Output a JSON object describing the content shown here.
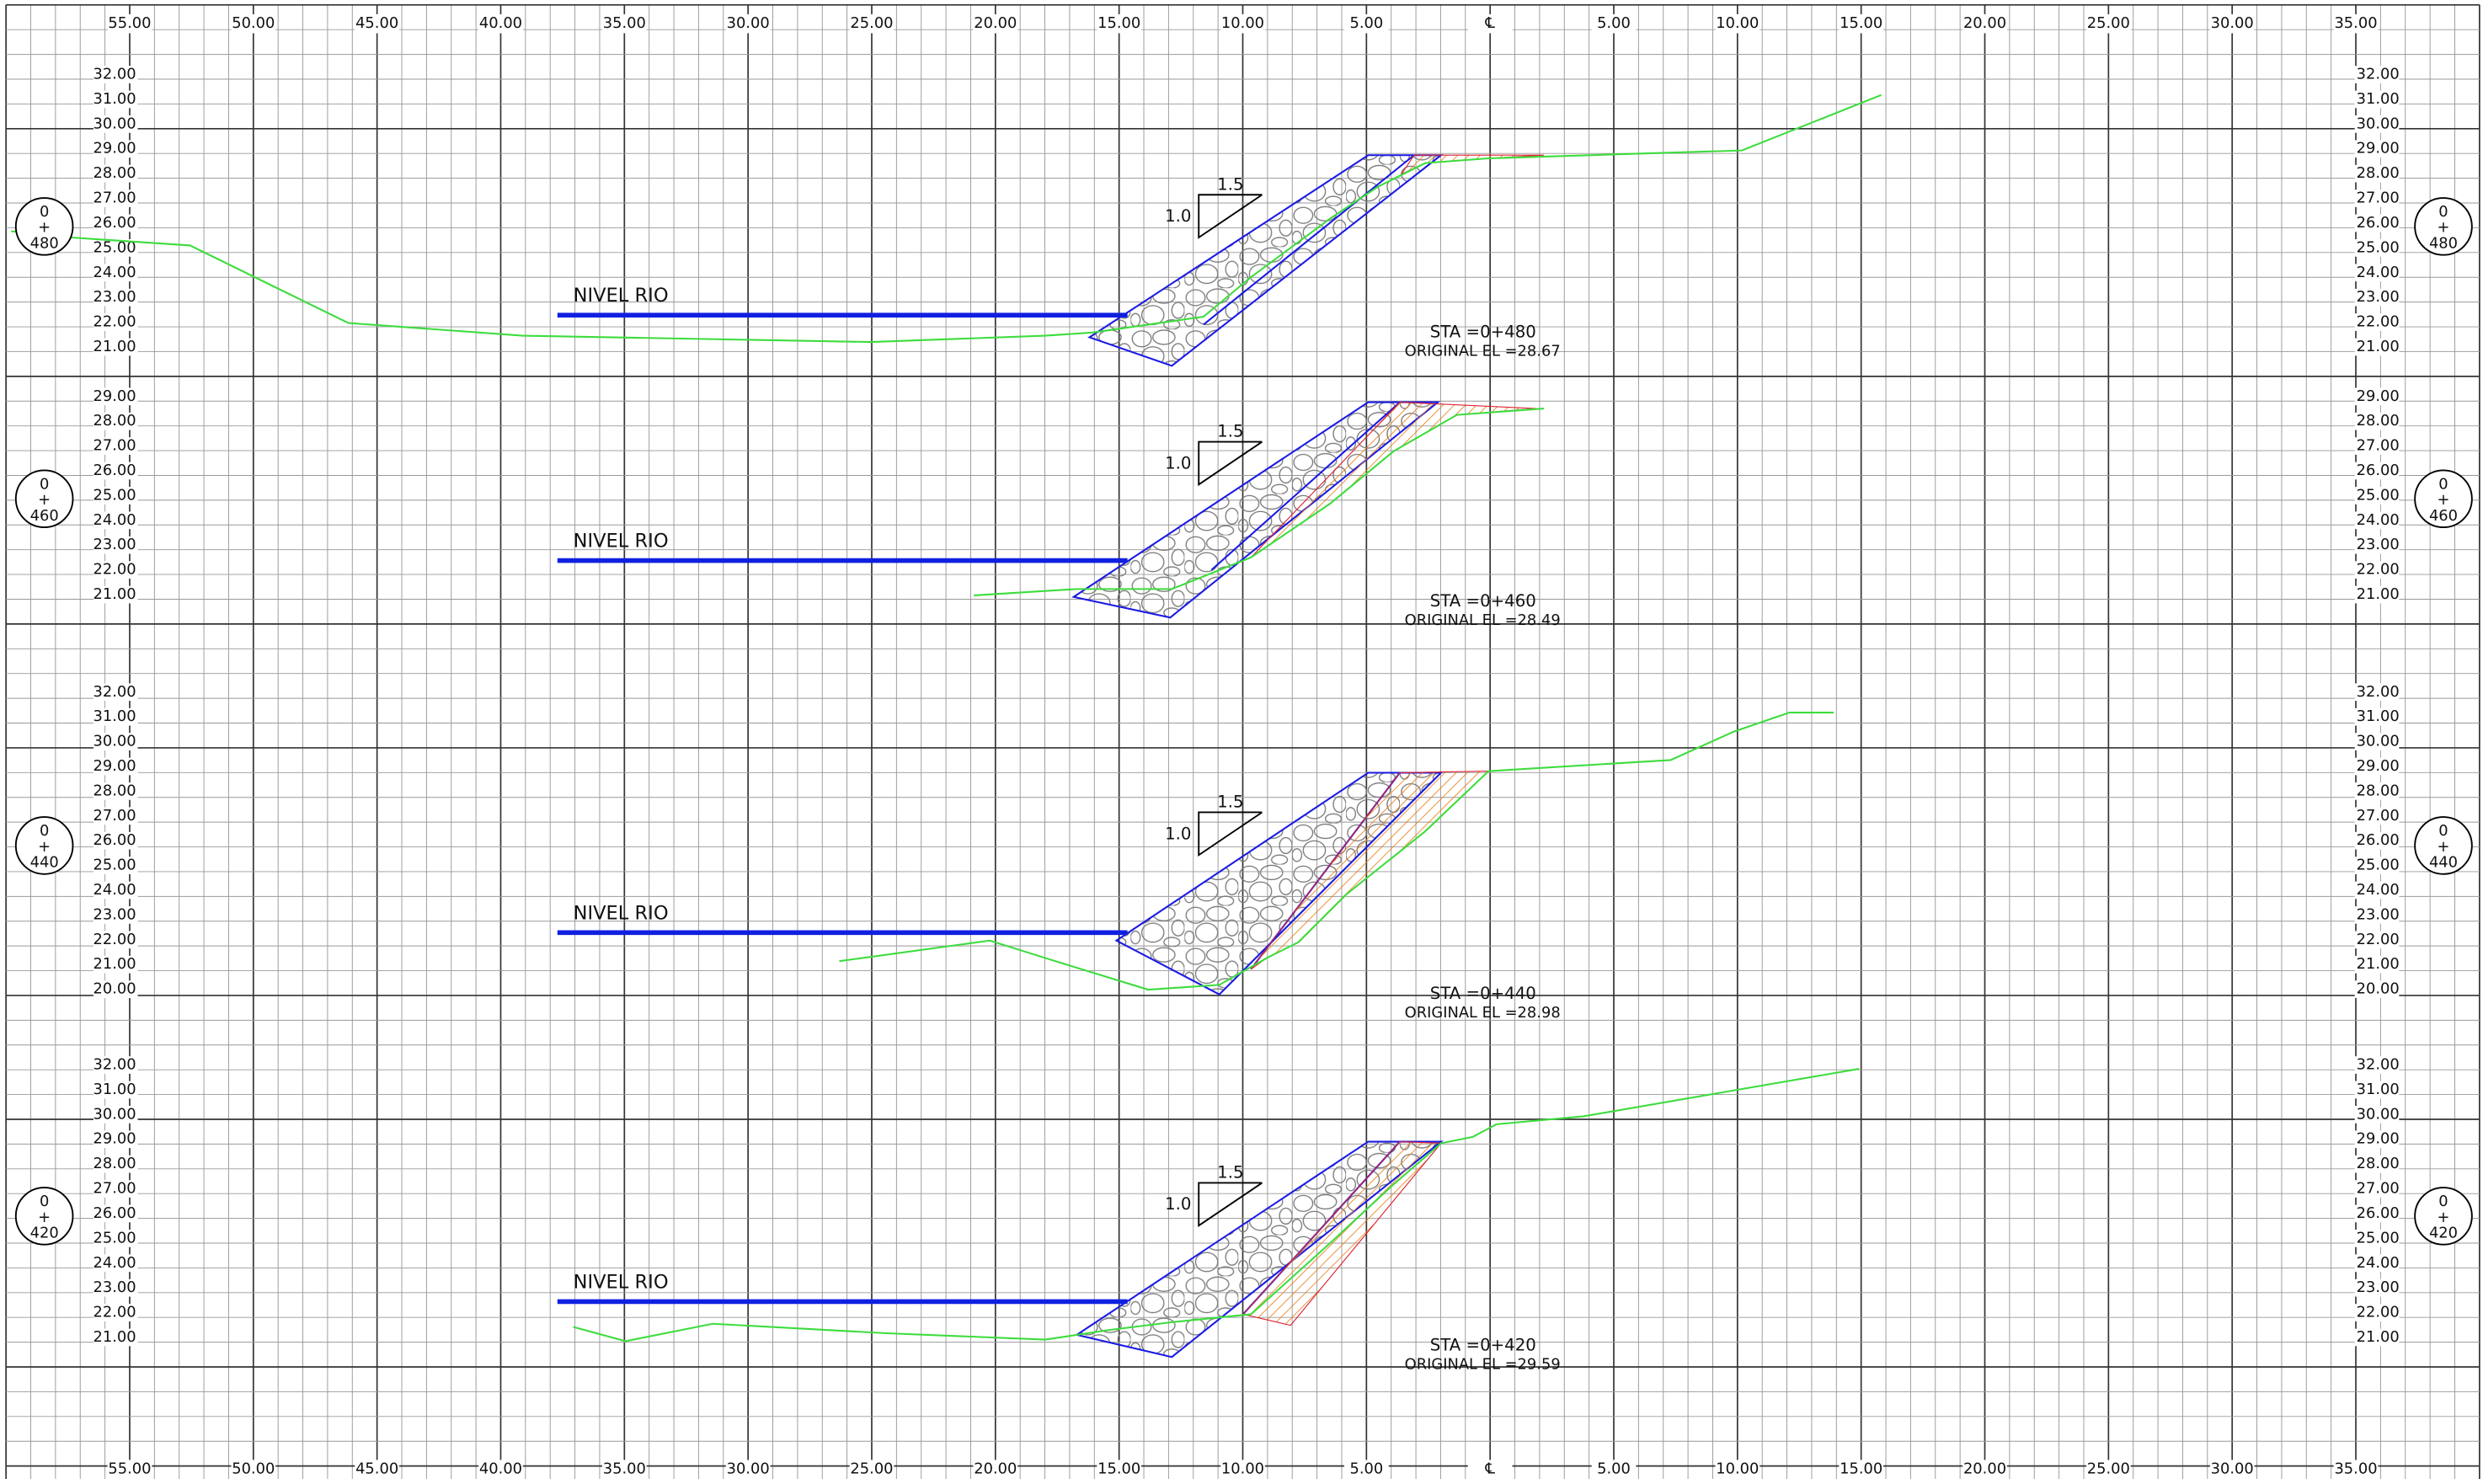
{
  "offset_labels": [
    "55.00",
    "50.00",
    "45.00",
    "40.00",
    "35.00",
    "30.00",
    "25.00",
    "20.00",
    "15.00",
    "10.00",
    "5.00",
    "℄",
    "5.00",
    "10.00",
    "15.00",
    "20.00",
    "25.00",
    "30.00",
    "35.00"
  ],
  "sections": [
    {
      "station": {
        "top": "0",
        "sign": "+",
        "number": "480"
      },
      "elevations": [
        "32.00",
        "31.00",
        "30.00",
        "29.00",
        "28.00",
        "27.00",
        "26.00",
        "25.00",
        "24.00",
        "23.00",
        "22.00",
        "21.00"
      ],
      "water_label": "NIVEL RIO",
      "slope": {
        "run": "1.5",
        "rise": "1.0"
      },
      "sta": "STA =0+480",
      "original_el": "ORIGINAL EL =28.67"
    },
    {
      "station": {
        "top": "0",
        "sign": "+",
        "number": "460"
      },
      "elevations": [
        "29.00",
        "28.00",
        "27.00",
        "26.00",
        "25.00",
        "24.00",
        "23.00",
        "22.00",
        "21.00"
      ],
      "water_label": "NIVEL RIO",
      "slope": {
        "run": "1.5",
        "rise": "1.0"
      },
      "sta": "STA =0+460",
      "original_el": "ORIGINAL EL =28.49"
    },
    {
      "station": {
        "top": "0",
        "sign": "+",
        "number": "440"
      },
      "elevations": [
        "32.00",
        "31.00",
        "30.00",
        "29.00",
        "28.00",
        "27.00",
        "26.00",
        "25.00",
        "24.00",
        "23.00",
        "22.00",
        "21.00",
        "20.00"
      ],
      "water_label": "NIVEL RIO",
      "slope": {
        "run": "1.5",
        "rise": "1.0"
      },
      "sta": "STA =0+440",
      "original_el": "ORIGINAL EL =28.98"
    },
    {
      "station": {
        "top": "0",
        "sign": "+",
        "number": "420"
      },
      "elevations": [
        "32.00",
        "31.00",
        "30.00",
        "29.00",
        "28.00",
        "27.00",
        "26.00",
        "25.00",
        "24.00",
        "23.00",
        "22.00",
        "21.00"
      ],
      "water_label": "NIVEL RIO",
      "slope": {
        "run": "1.5",
        "rise": "1.0"
      },
      "sta": "STA =0+420",
      "original_el": "ORIGINAL EL =29.59"
    }
  ]
}
